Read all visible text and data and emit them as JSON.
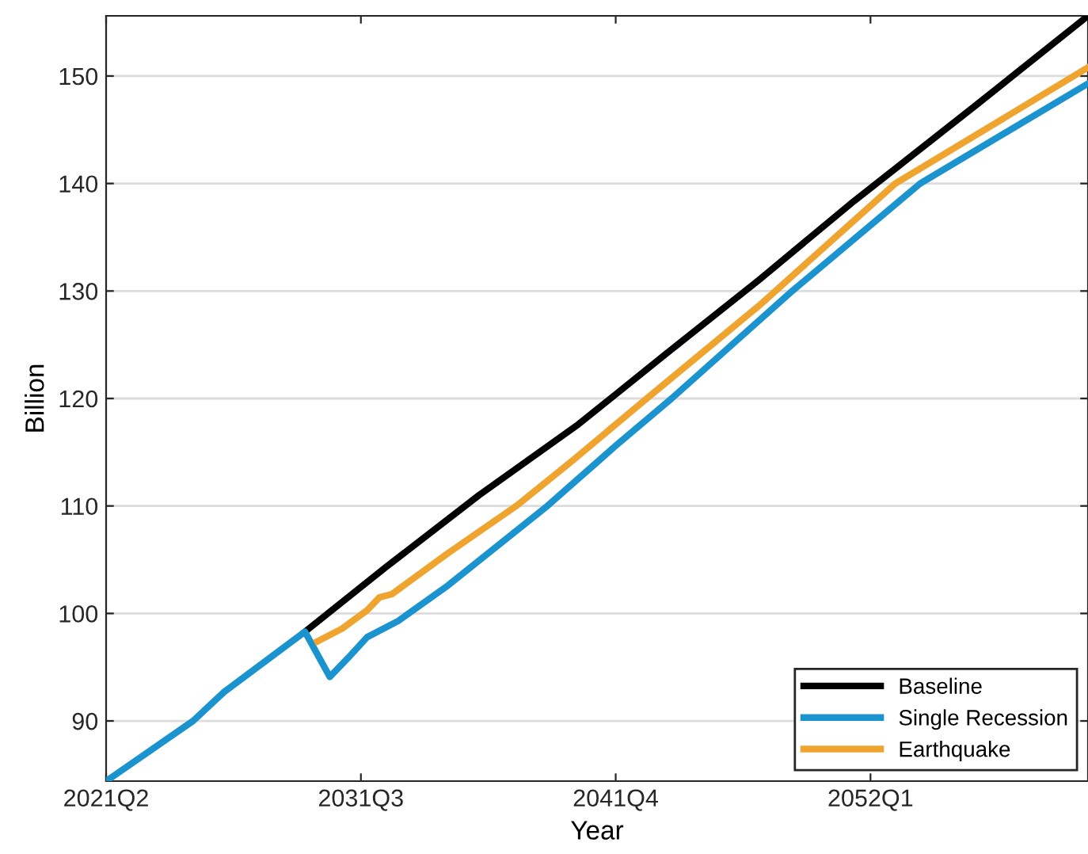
{
  "chart_data": {
    "type": "line",
    "xlabel": "Year",
    "ylabel": "Billion",
    "xlim": [
      "2021-04",
      "2060-10"
    ],
    "xticks": [
      {
        "value": "2021-04",
        "label": "2021Q2"
      },
      {
        "value": "2031-07",
        "label": "2031Q3"
      },
      {
        "value": "2041-10",
        "label": "2041Q4"
      },
      {
        "value": "2052-01",
        "label": "2052Q1"
      }
    ],
    "ylim": [
      84.4,
      155.6
    ],
    "yticks": [
      90,
      100,
      110,
      120,
      130,
      140,
      150
    ],
    "grid": "y",
    "legend": "bottom right",
    "line_style": "solid",
    "marker": "none",
    "series": [
      {
        "name": "Baseline",
        "color": "#000000",
        "x": [
          "2029-04",
          "2032-07",
          "2036-04",
          "2040-04",
          "2043-10",
          "2047-07",
          "2051-04",
          "2056-04",
          "2060-10"
        ],
        "values": [
          98.3,
          104.3,
          111,
          117.6,
          124.1,
          131,
          138.2,
          147.3,
          155.6
        ]
      },
      {
        "name": "Single Recession",
        "color": "#1a93cf",
        "x": [
          "2021-04",
          "2024-10",
          "2026-01",
          "2029-04",
          "2030-04",
          "2031-01",
          "2031-10",
          "2033-01",
          "2035-01",
          "2039-01",
          "2041-10",
          "2044-01",
          "2048-10",
          "2054-01",
          "2060-10"
        ],
        "values": [
          84.4,
          90,
          92.7,
          98.3,
          94.1,
          95.9,
          97.8,
          99.3,
          102.6,
          110,
          115.6,
          120,
          129.8,
          140,
          149.3
        ]
      },
      {
        "name": "Earthquake",
        "color": "#f0a430",
        "x": [
          "2029-10",
          "2030-10",
          "2031-10",
          "2032-04",
          "2032-10",
          "2035-01",
          "2037-10",
          "2040-01",
          "2043-01",
          "2047-07",
          "2053-01",
          "2060-10"
        ],
        "values": [
          97.4,
          98.6,
          100.3,
          101.5,
          101.8,
          105.6,
          110,
          114.2,
          120,
          128.6,
          140,
          150.8
        ]
      }
    ]
  }
}
